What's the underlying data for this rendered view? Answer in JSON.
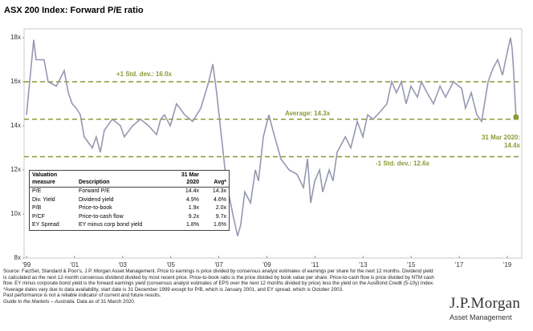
{
  "chart_data": {
    "type": "line",
    "title": "ASX 200 Index: Forward P/E ratio",
    "color": "#9598b0",
    "x": [
      1999.0,
      1999.3,
      1999.4,
      1999.73,
      1999.9,
      2000.24,
      2000.57,
      2000.74,
      2000.9,
      2001.07,
      2001.24,
      2001.4,
      2001.74,
      2001.9,
      2002.07,
      2002.24,
      2002.57,
      2002.91,
      2003.07,
      2003.41,
      2003.74,
      2004.08,
      2004.41,
      2004.58,
      2004.74,
      2004.98,
      2005.24,
      2005.58,
      2005.91,
      2006.25,
      2006.58,
      2006.75,
      2006.91,
      2007.11,
      2007.31,
      2007.58,
      2007.78,
      2007.91,
      2008.08,
      2008.32,
      2008.52,
      2008.65,
      2008.85,
      2009.08,
      2009.25,
      2009.58,
      2009.92,
      2010.25,
      2010.52,
      2010.69,
      2010.82,
      2010.99,
      2011.19,
      2011.32,
      2011.59,
      2011.75,
      2011.92,
      2012.26,
      2012.49,
      2012.76,
      2012.99,
      2013.19,
      2013.42,
      2013.76,
      2013.99,
      2014.19,
      2014.39,
      2014.59,
      2014.79,
      2014.99,
      2015.26,
      2015.43,
      2015.66,
      2015.93,
      2016.2,
      2016.43,
      2016.76,
      2017.1,
      2017.26,
      2017.5,
      2017.73,
      2017.93,
      2018.2,
      2018.4,
      2018.6,
      2018.8,
      2018.93,
      2019.03,
      2019.13,
      2019.2,
      2019.26,
      2019.36
    ],
    "values": [
      14.5,
      17.9,
      17.0,
      17.0,
      16.0,
      15.8,
      16.5,
      15.5,
      15.0,
      14.8,
      14.5,
      13.5,
      13.0,
      13.5,
      12.8,
      13.8,
      14.3,
      14.0,
      13.5,
      14.0,
      14.3,
      14.0,
      13.6,
      14.3,
      14.5,
      14.0,
      15.0,
      14.5,
      14.2,
      14.8,
      16.0,
      16.8,
      15.5,
      13.5,
      11.5,
      10.0,
      9.0,
      9.5,
      11.0,
      10.5,
      12.0,
      11.5,
      13.5,
      14.5,
      13.8,
      12.5,
      12.0,
      11.8,
      11.2,
      12.5,
      10.5,
      11.5,
      12.0,
      11.0,
      12.0,
      11.5,
      12.8,
      13.5,
      13.0,
      14.2,
      13.5,
      14.5,
      14.3,
      14.7,
      15.0,
      16.0,
      15.5,
      16.0,
      15.0,
      15.8,
      15.3,
      16.0,
      15.5,
      15.0,
      15.8,
      15.3,
      16.0,
      15.7,
      14.8,
      15.5,
      14.5,
      14.2,
      16.0,
      16.6,
      17.0,
      16.3,
      17.0,
      17.5,
      18.0,
      17.5,
      16.5,
      14.4
    ],
    "xlim": [
      1998.9,
      2019.6
    ],
    "ylim": [
      8,
      18.4
    ],
    "xticks": [
      {
        "value": 1999,
        "label": "'99"
      },
      {
        "value": 2001,
        "label": "'01"
      },
      {
        "value": 2003,
        "label": "'03"
      },
      {
        "value": 2005,
        "label": "'05"
      },
      {
        "value": 2007,
        "label": "'07"
      },
      {
        "value": 2009,
        "label": "'09"
      },
      {
        "value": 2011,
        "label": "'11"
      },
      {
        "value": 2013,
        "label": "'13"
      },
      {
        "value": 2015,
        "label": "'15"
      },
      {
        "value": 2017,
        "label": "'17"
      },
      {
        "value": 2019,
        "label": "'19"
      }
    ],
    "yticks": [
      {
        "value": 8,
        "label": "8x"
      },
      {
        "value": 10,
        "label": "10x"
      },
      {
        "value": 12,
        "label": "12x"
      },
      {
        "value": 14,
        "label": "14x"
      },
      {
        "value": 16,
        "label": "16x"
      },
      {
        "value": 18,
        "label": "18x"
      }
    ],
    "reference_lines": [
      {
        "value": 16.0,
        "label": "+1 Std. dev.: 16.0x"
      },
      {
        "value": 14.3,
        "label": "Average: 14.3x"
      },
      {
        "value": 12.6,
        "label": "-1 Std. dev.: 12.6x"
      }
    ],
    "reference_color": "#8a9a36",
    "end_label": [
      "31 Mar 2020:",
      "14.4x"
    ]
  },
  "table": {
    "header": [
      "Valuation measure",
      "Description",
      "31 Mar 2020",
      "Avg*"
    ],
    "rows": [
      [
        "P/E",
        "Forward P/E",
        "14.4x",
        "14.3x"
      ],
      [
        "Div. Yield",
        "Dividend yield",
        "4.9%",
        "4.6%"
      ],
      [
        "P/B",
        "Price-to-book",
        "1.9x",
        "2.0x"
      ],
      [
        "P/CF",
        "Price-to-cash flow",
        "9.2x",
        "9.7x"
      ],
      [
        "EY Spread",
        "EY minus corp bond yield",
        "1.8%",
        "1.6%"
      ]
    ]
  },
  "footer": {
    "source": "Source: FactSet, Standard & Poor's, J.P. Morgan Asset Management. Price to earnings is price divided by consensus analyst estimates of earnings per share for the next 12 months. Dividend yield is calculated as the next 12-month consensus dividend divided by most recent price. Price-to-book ratio is the price divided by book value per share. Price-to-cash flow is price divided by NTM cash flow. EY minus corporate bond yield is the forward earnings yield (consensus analyst estimates of EPS over the next 12 months divided by price) less the yield on the AusBond Credit (5-10y) Index. *Average dates vary due to data availability, start date is 31 December 1999 except for P/B, which is January 2001, and EY spread, which is October 2003.",
    "disclaimer": "Past performance is not a reliable indicator of current and future results.",
    "guide": "Guide to the Markets – Australia.",
    "date": "Data as of 31 March 2020."
  },
  "logo": {
    "name": "J.P.Morgan",
    "division": "Asset Management"
  }
}
